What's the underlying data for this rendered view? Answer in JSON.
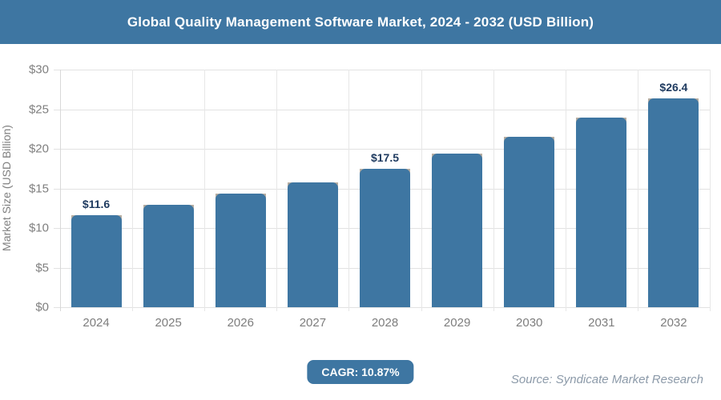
{
  "header": {
    "title": "Global Quality Management Software Market, 2024 - 2032 (USD Billion)"
  },
  "chart_data": {
    "type": "bar",
    "title": "Global Quality Management Software Market, 2024 - 2032 (USD Billion)",
    "categories": [
      "2024",
      "2025",
      "2026",
      "2027",
      "2028",
      "2029",
      "2030",
      "2031",
      "2032"
    ],
    "values": [
      11.6,
      12.9,
      14.3,
      15.8,
      17.5,
      19.4,
      21.5,
      23.9,
      26.4
    ],
    "data_labels": [
      "$11.6",
      "",
      "",
      "",
      "$17.5",
      "",
      "",
      "",
      "$26.4"
    ],
    "xlabel": "",
    "ylabel": "Market Size (USD Billion)",
    "ylim": [
      0,
      30
    ],
    "ytick_step": 5,
    "ytick_labels": [
      "$0",
      "$5",
      "$10",
      "$15",
      "$20",
      "$25",
      "$30"
    ],
    "grid": true,
    "legend": false,
    "bar_color": "#3e76a2",
    "value_label_color": "#1e3a5f"
  },
  "footer": {
    "cagr_label": "CAGR: 10.87%",
    "source": "Source: Syndicate Market Research"
  },
  "colors": {
    "banner_background": "#3e76a2",
    "bar": "#3e76a2",
    "bar_shadow": "#b7aea2",
    "gridline": "#e2e2e2",
    "tick_text": "#7f7f7f",
    "data_label_text": "#1e3a5f",
    "source_text": "#8c9aa9"
  }
}
